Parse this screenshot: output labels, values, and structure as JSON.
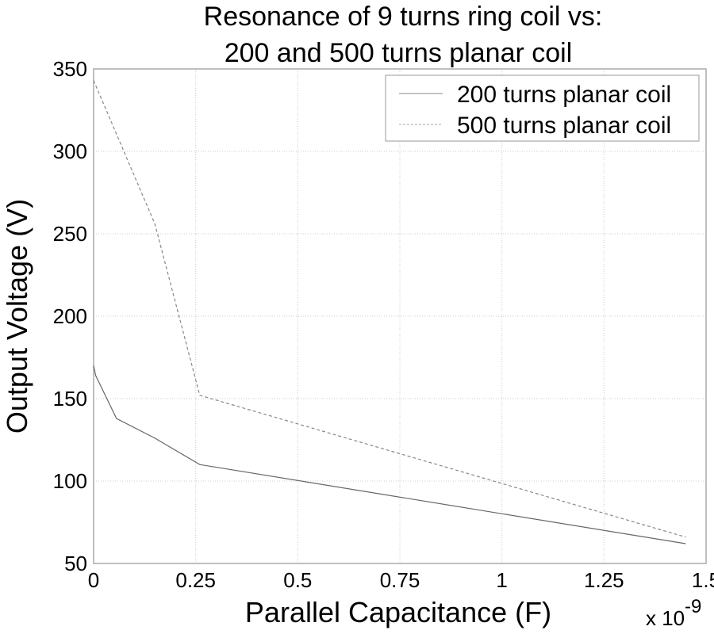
{
  "chart_data": {
    "type": "line",
    "title": [
      "Resonance of 9 turns ring coil vs:",
      "200 and 500 turns planar coil"
    ],
    "xlabel": "Parallel Capacitance (F)",
    "ylabel": "Output Voltage (V)",
    "x_multiplier_label": "x 10",
    "x_multiplier_exp": "-9",
    "xlim": [
      0,
      1.5
    ],
    "ylim": [
      50,
      350
    ],
    "xticks": [
      0,
      0.25,
      0.5,
      0.75,
      1,
      1.25,
      1.5
    ],
    "xtick_labels": [
      "0",
      "0.25",
      "0.5",
      "0.75",
      "1",
      "1.25",
      "1.5"
    ],
    "yticks": [
      50,
      100,
      150,
      200,
      250,
      300,
      350
    ],
    "ytick_labels": [
      "50",
      "100",
      "150",
      "200",
      "250",
      "300",
      "350"
    ],
    "grid": true,
    "legend_position": "top-right",
    "series": [
      {
        "name": "200 turns planar coil",
        "style": "solid",
        "color": "#666666",
        "x": [
          0,
          0.005,
          0.056,
          0.15,
          0.26,
          1.45
        ],
        "y": [
          170,
          164,
          138,
          126,
          110,
          62
        ]
      },
      {
        "name": "500 turns planar coil",
        "style": "dashed",
        "color": "#888888",
        "x": [
          0,
          0.15,
          0.26,
          1.45
        ],
        "y": [
          343,
          256,
          152,
          66
        ]
      }
    ]
  }
}
